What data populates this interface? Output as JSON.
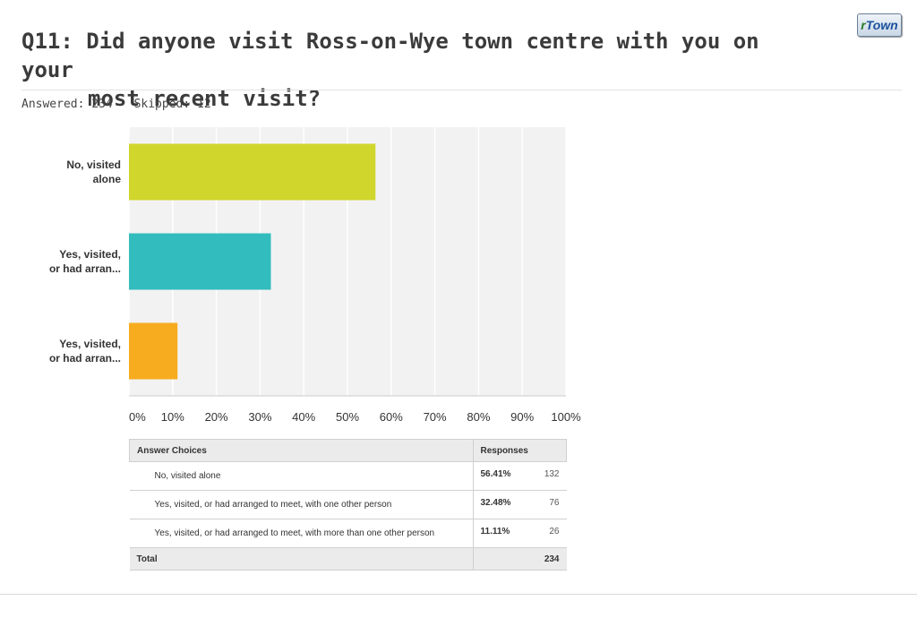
{
  "header": {
    "question": "Q11:",
    "title_line1": "Did anyone visit Ross-on-Wye town centre with you on your",
    "title_line2": "most recent visit?",
    "answered": "Answered: 234",
    "skipped": "Skipped: 12",
    "logo_r": "r",
    "logo_rest": "Town"
  },
  "chart_data": {
    "type": "bar",
    "orientation": "horizontal",
    "categories": [
      [
        "No, visited",
        "alone"
      ],
      [
        "Yes, visited,",
        "or had arran..."
      ],
      [
        "Yes, visited,",
        "or had arran..."
      ]
    ],
    "values": [
      56.41,
      32.48,
      11.11
    ],
    "colors": [
      "#d0d62c",
      "#33bcbd",
      "#f7ac1f"
    ],
    "xlim": [
      0,
      100
    ],
    "x_ticks": [
      "0%",
      "10%",
      "20%",
      "30%",
      "40%",
      "50%",
      "60%",
      "70%",
      "80%",
      "90%",
      "100%"
    ],
    "grid": true
  },
  "table": {
    "header_choices": "Answer Choices",
    "header_responses": "Responses",
    "rows": [
      {
        "choice": "No, visited alone",
        "pct": "56.41%",
        "count": "132"
      },
      {
        "choice": "Yes, visited, or had arranged to meet, with one other person",
        "pct": "32.48%",
        "count": "76"
      },
      {
        "choice": "Yes, visited, or had arranged to meet, with more than one other person",
        "pct": "11.11%",
        "count": "26"
      }
    ],
    "total_label": "Total",
    "total_value": "234"
  }
}
